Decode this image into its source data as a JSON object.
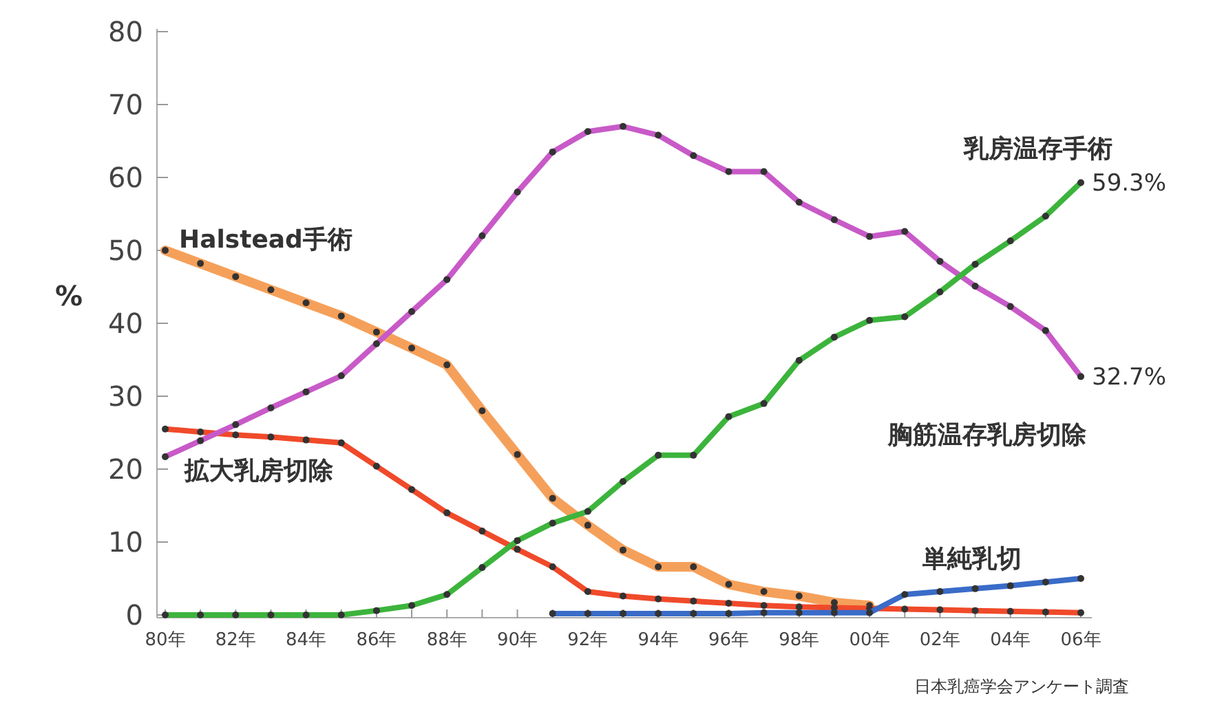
{
  "chart_data": {
    "type": "line",
    "ylabel": "%",
    "ylim": [
      0,
      80
    ],
    "categories": [
      "80年",
      null,
      "82年",
      null,
      "84年",
      null,
      "86年",
      null,
      "88年",
      null,
      "90年",
      null,
      "92年",
      null,
      "94年",
      null,
      "96年",
      null,
      "98年",
      null,
      "00年",
      null,
      "02年",
      null,
      "04年",
      null,
      "06年"
    ],
    "yticks": [
      0,
      10,
      20,
      30,
      40,
      50,
      60,
      70,
      80
    ],
    "grid": false,
    "legend": false,
    "marker": "circle",
    "line_style": "solid",
    "series": [
      {
        "name": "Halstead手術",
        "color": "#f5a05a",
        "values": [
          50,
          48.2,
          46.4,
          44.6,
          42.8,
          41,
          38.8,
          36.6,
          34.3,
          28,
          22,
          16,
          12.3,
          8.9,
          6.6,
          6.6,
          4.2,
          3.2,
          2.6,
          1.7,
          1.3,
          null,
          null,
          null,
          null,
          null,
          null
        ]
      },
      {
        "name": "拡大乳房切除",
        "color": "#f04a2a",
        "values": [
          25.5,
          25.1,
          24.7,
          24.4,
          24,
          23.6,
          20.4,
          17.2,
          14,
          11.5,
          9,
          6.6,
          3.2,
          2.6,
          2.2,
          1.9,
          1.6,
          1.3,
          1.1,
          1,
          0.9,
          0.8,
          0.7,
          0.6,
          0.5,
          0.4,
          0.3
        ]
      },
      {
        "name": "胸筋温存乳房切除",
        "color": "#c85ac8",
        "values": [
          21.7,
          23.9,
          26.1,
          28.4,
          30.6,
          32.8,
          37.2,
          41.6,
          46,
          52,
          58,
          63.5,
          66.3,
          67,
          65.8,
          63,
          60.8,
          60.8,
          56.6,
          54.2,
          51.9,
          52.6,
          48.5,
          45.1,
          42.3,
          39,
          32.7
        ]
      },
      {
        "name": "乳房温存手術",
        "color": "#3cb43c",
        "values": [
          0,
          0,
          0,
          0,
          0,
          0,
          0.6,
          1.3,
          2.8,
          6.5,
          10.2,
          12.6,
          14.2,
          18.3,
          21.9,
          21.9,
          27.2,
          29,
          34.9,
          38.1,
          40.4,
          40.9,
          44.3,
          48.1,
          51.3,
          54.7,
          59.3
        ]
      },
      {
        "name": "単純乳切",
        "color": "#3a6cc8",
        "values": [
          null,
          null,
          null,
          null,
          null,
          null,
          null,
          null,
          null,
          null,
          null,
          0.2,
          0.2,
          0.2,
          0.2,
          0.2,
          0.2,
          0.3,
          0.3,
          0.3,
          0.3,
          2.8,
          3.2,
          3.6,
          4,
          4.5,
          5
        ]
      }
    ],
    "annotations": [
      {
        "text": "59.3%",
        "x": "06年",
        "y": 59.3
      },
      {
        "text": "32.7%",
        "x": "06年",
        "y": 32.7
      },
      "日本乳癌学会アンケート調査"
    ]
  }
}
